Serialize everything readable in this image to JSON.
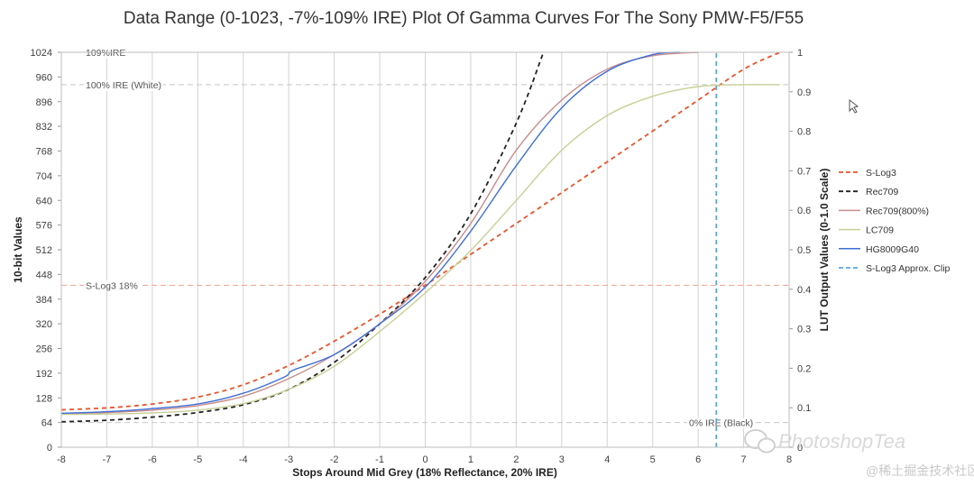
{
  "chart_data": {
    "type": "line",
    "title": "Data Range (0-1023, -7%-109% IRE) Plot Of Gamma Curves For The Sony PMW-F5/F55",
    "xlabel": "Stops Around Mid Grey (18% Reflectance, 20% IRE)",
    "ylabel": "10-bit Values",
    "y2label": "LUT Output Values (0-1.0 Scale)",
    "xlim": [
      -8,
      8
    ],
    "ylim": [
      0,
      1024
    ],
    "y2lim": [
      0,
      1
    ],
    "x_ticks": [
      "-8",
      "-7",
      "-6",
      "-5",
      "-4",
      "-3",
      "-2",
      "-1",
      "0",
      "1",
      "2",
      "3",
      "4",
      "5",
      "6",
      "7",
      "8"
    ],
    "y_ticks": [
      "0",
      "64",
      "128",
      "192",
      "256",
      "320",
      "384",
      "448",
      "512",
      "576",
      "640",
      "704",
      "768",
      "832",
      "896",
      "960",
      "1024"
    ],
    "y2_ticks": [
      "0",
      "0.1",
      "0.2",
      "0.3",
      "0.4",
      "0.5",
      "0.6",
      "0.7",
      "0.8",
      "0.9",
      "1"
    ],
    "grid": true,
    "legend_position": "right",
    "reference_lines": [
      {
        "label": "109%IRE",
        "y": 1024
      },
      {
        "label": "100% IRE (White)",
        "y": 940
      },
      {
        "label": "S-Log3 18%",
        "y": 420
      },
      {
        "label": "0% IRE (Black)",
        "y": 64
      }
    ],
    "series": [
      {
        "name": "S-Log3",
        "color": "#e8542a",
        "dash": "dash",
        "x": [
          -8,
          -7,
          -6,
          -5,
          -4,
          -3,
          -2,
          -1,
          0,
          1,
          2,
          3,
          4,
          5,
          6,
          7,
          7.8
        ],
        "y": [
          97,
          102,
          112,
          130,
          162,
          212,
          275,
          345,
          420,
          500,
          580,
          660,
          740,
          820,
          900,
          980,
          1024
        ]
      },
      {
        "name": "Rec709",
        "color": "#222222",
        "dash": "dash",
        "x": [
          -8,
          -7,
          -6,
          -5,
          -4,
          -3,
          -2,
          -1,
          0,
          1,
          2,
          2.6
        ],
        "y": [
          66,
          70,
          78,
          90,
          110,
          150,
          220,
          320,
          440,
          605,
          840,
          1024
        ]
      },
      {
        "name": "Rec709(800%)",
        "color": "#c98c8c",
        "dash": "solid",
        "x": [
          -8,
          -7,
          -6,
          -5,
          -4,
          -3,
          -2,
          -1,
          0,
          1,
          2,
          3,
          4,
          5,
          6
        ],
        "y": [
          86,
          90,
          96,
          108,
          132,
          178,
          240,
          320,
          430,
          580,
          770,
          900,
          980,
          1015,
          1024
        ]
      },
      {
        "name": "LC709",
        "color": "#c7cf94",
        "dash": "solid",
        "x": [
          -8,
          -7,
          -6,
          -5,
          -4,
          -3,
          -2,
          -1,
          0,
          1,
          2,
          3,
          4,
          5,
          6,
          7,
          7.8
        ],
        "y": [
          85,
          86,
          89,
          96,
          113,
          150,
          210,
          300,
          400,
          510,
          640,
          770,
          860,
          910,
          935,
          940,
          940
        ]
      },
      {
        "name": "HG8009G40",
        "color": "#3f6fd6",
        "dash": "solid",
        "x": [
          -8,
          -7,
          -6,
          -5,
          -4,
          -3.1,
          -2.9,
          -2,
          -1,
          0,
          1,
          2,
          3,
          4,
          5,
          5.6
        ],
        "y": [
          88,
          92,
          100,
          112,
          140,
          182,
          200,
          240,
          320,
          415,
          560,
          730,
          880,
          975,
          1018,
          1024
        ]
      },
      {
        "name": "S-Log3 Approx. Clip",
        "color": "#5aa6df",
        "dash": "dash",
        "x": [
          6.4,
          6.4
        ],
        "y": [
          0,
          1024
        ]
      }
    ]
  },
  "watermark": {
    "main": "PhotoshopTea",
    "sub": "@稀土掘金技术社区"
  }
}
